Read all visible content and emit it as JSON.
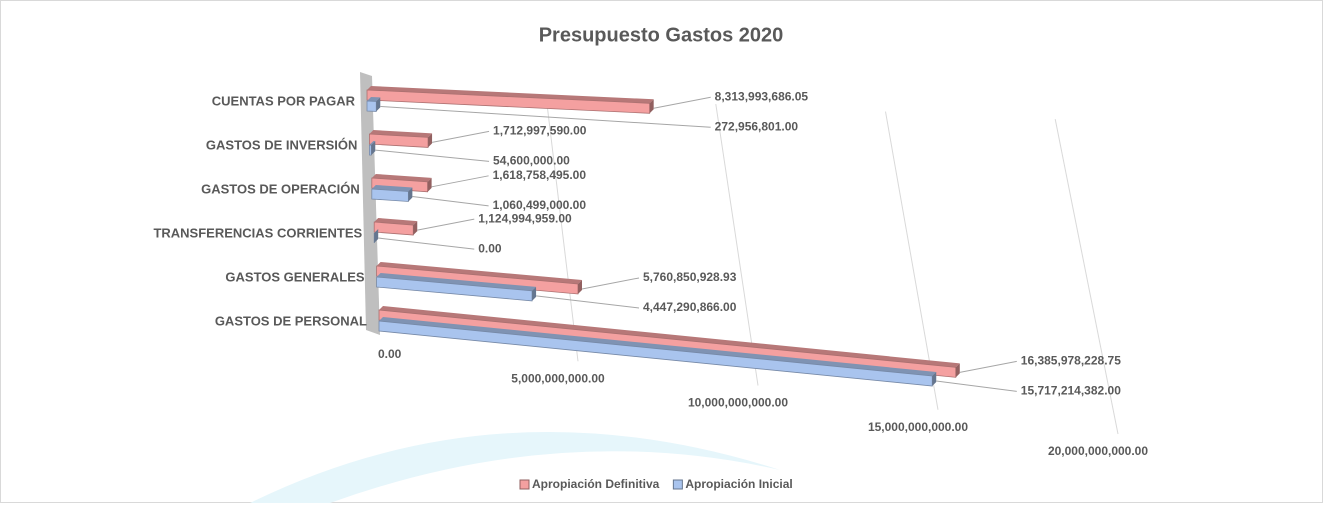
{
  "chart_data": {
    "type": "bar3d",
    "orientation": "horizontal",
    "title": "Presupuesto Gastos 2020",
    "categories": [
      "CUENTAS POR PAGAR",
      "GASTOS DE INVERSIÓN",
      "GASTOS DE OPERACIÓN",
      "TRANSFERENCIAS CORRIENTES",
      "GASTOS GENERALES",
      "GASTOS DE PERSONAL"
    ],
    "series": [
      {
        "name": "Apropiación Definitiva",
        "color": "#f4a0a0",
        "values": [
          8313993686.05,
          1712997590,
          1618758495,
          1124994959,
          5760850928.93,
          16385978228.75
        ],
        "value_labels": [
          "8,313,993,686.05",
          "1,712,997,590.00",
          "1,618,758,495.00",
          "1,124,994,959.00",
          "5,760,850,928.93",
          "16,385,978,228.75"
        ]
      },
      {
        "name": "Apropiación Inicial",
        "color": "#a9c4ee",
        "values": [
          272956801,
          54600000,
          1060499000,
          0,
          4447290866,
          15717214382
        ],
        "value_labels": [
          "272,956,801.00",
          "54,600,000.00",
          "1,060,499,000.00",
          "0.00",
          "4,447,290,866.00",
          "15,717,214,382.00"
        ]
      }
    ],
    "xlim": [
      0,
      20000000000
    ],
    "xticks": [
      {
        "value": 0,
        "label": "0.00"
      },
      {
        "value": 5000000000,
        "label": "5,000,000,000.00"
      },
      {
        "value": 10000000000,
        "label": "10,000,000,000.00"
      },
      {
        "value": 15000000000,
        "label": "15,000,000,000.00"
      },
      {
        "value": 20000000000,
        "label": "20,000,000,000.00"
      }
    ],
    "grid": true,
    "legend": "bottom"
  }
}
